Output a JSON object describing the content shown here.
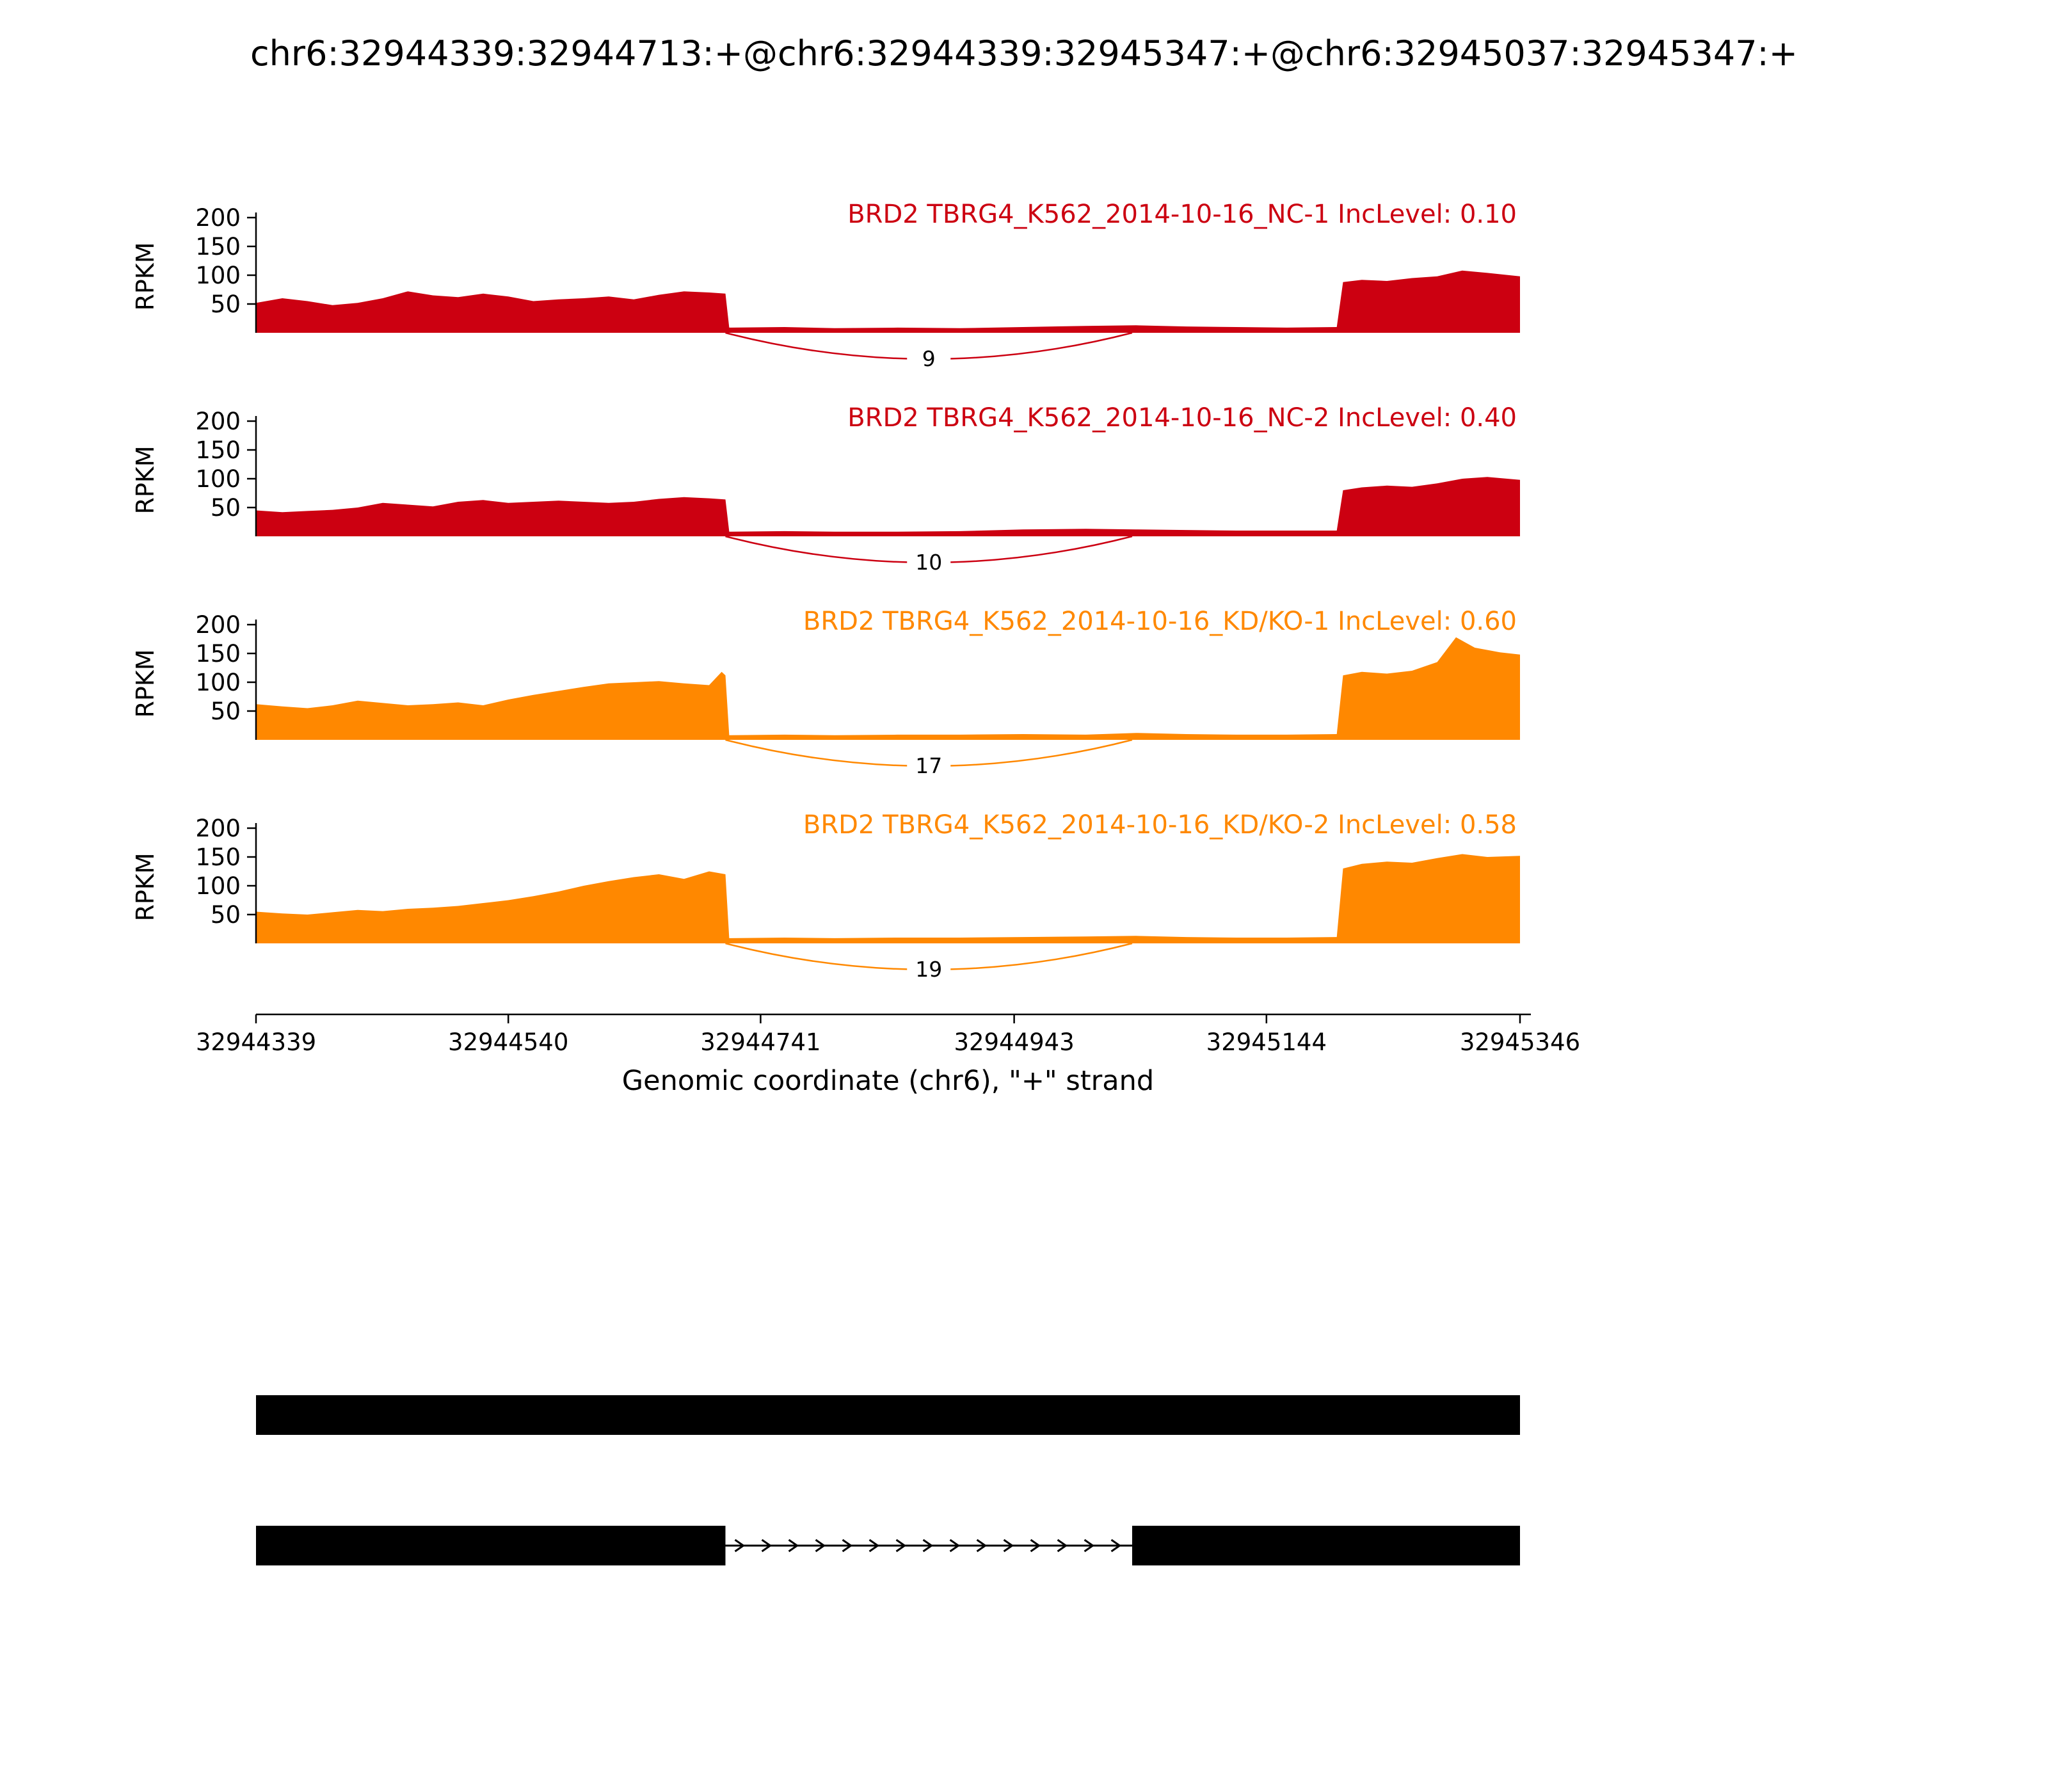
{
  "title": "chr6:32944339:32944713:+@chr6:32944339:32945347:+@chr6:32945037:32945347:+",
  "chart_data": {
    "type": "area",
    "subtype": "sashimi-plot",
    "title": "chr6:32944339:32944713:+@chr6:32944339:32945347:+@chr6:32945037:32945347:+",
    "xlabel": "Genomic coordinate (chr6), \"+\" strand",
    "ylabel": "RPKM",
    "xlim": [
      32944339,
      32945346
    ],
    "ylim": [
      0,
      230
    ],
    "x_ticks": [
      32944339,
      32944540,
      32944741,
      32944943,
      32945144,
      32945346
    ],
    "y_ticks": [
      50,
      100,
      150,
      200
    ],
    "colors": {
      "nc": "#CC0011",
      "kd": "#FF8800",
      "gene_model": "#000000"
    },
    "tracks": [
      {
        "sample": "BRD2 TBRG4_K562_2014-10-16_NC-1",
        "inc_level": 0.1,
        "label": "BRD2 TBRG4_K562_2014-10-16_NC-1 IncLevel: 0.10",
        "color": "#CC0011",
        "junction": {
          "from": 32944713,
          "to": 32945037,
          "reads": 9
        },
        "coverage": [
          [
            32944339,
            52
          ],
          [
            32944360,
            60
          ],
          [
            32944380,
            55
          ],
          [
            32944400,
            48
          ],
          [
            32944420,
            52
          ],
          [
            32944440,
            60
          ],
          [
            32944460,
            72
          ],
          [
            32944480,
            65
          ],
          [
            32944500,
            62
          ],
          [
            32944520,
            68
          ],
          [
            32944540,
            63
          ],
          [
            32944560,
            55
          ],
          [
            32944580,
            58
          ],
          [
            32944600,
            60
          ],
          [
            32944620,
            63
          ],
          [
            32944640,
            58
          ],
          [
            32944660,
            66
          ],
          [
            32944680,
            72
          ],
          [
            32944700,
            70
          ],
          [
            32944713,
            68
          ],
          [
            32944716,
            9
          ],
          [
            32944760,
            10
          ],
          [
            32944800,
            8
          ],
          [
            32944850,
            9
          ],
          [
            32944900,
            8
          ],
          [
            32944950,
            10
          ],
          [
            32945000,
            12
          ],
          [
            32945040,
            13
          ],
          [
            32945080,
            11
          ],
          [
            32945120,
            10
          ],
          [
            32945160,
            9
          ],
          [
            32945200,
            10
          ],
          [
            32945205,
            88
          ],
          [
            32945220,
            92
          ],
          [
            32945240,
            90
          ],
          [
            32945260,
            95
          ],
          [
            32945280,
            98
          ],
          [
            32945300,
            108
          ],
          [
            32945320,
            104
          ],
          [
            32945346,
            98
          ]
        ]
      },
      {
        "sample": "BRD2 TBRG4_K562_2014-10-16_NC-2",
        "inc_level": 0.4,
        "label": "BRD2 TBRG4_K562_2014-10-16_NC-2 IncLevel: 0.40",
        "color": "#CC0011",
        "junction": {
          "from": 32944713,
          "to": 32945037,
          "reads": 10
        },
        "coverage": [
          [
            32944339,
            45
          ],
          [
            32944360,
            42
          ],
          [
            32944380,
            44
          ],
          [
            32944400,
            46
          ],
          [
            32944420,
            50
          ],
          [
            32944440,
            58
          ],
          [
            32944460,
            55
          ],
          [
            32944480,
            52
          ],
          [
            32944500,
            60
          ],
          [
            32944520,
            63
          ],
          [
            32944540,
            58
          ],
          [
            32944560,
            60
          ],
          [
            32944580,
            62
          ],
          [
            32944600,
            60
          ],
          [
            32944620,
            58
          ],
          [
            32944640,
            60
          ],
          [
            32944660,
            65
          ],
          [
            32944680,
            68
          ],
          [
            32944700,
            66
          ],
          [
            32944713,
            64
          ],
          [
            32944716,
            8
          ],
          [
            32944760,
            9
          ],
          [
            32944800,
            8
          ],
          [
            32944850,
            8
          ],
          [
            32944900,
            9
          ],
          [
            32944950,
            12
          ],
          [
            32945000,
            13
          ],
          [
            32945040,
            12
          ],
          [
            32945080,
            11
          ],
          [
            32945120,
            10
          ],
          [
            32945160,
            10
          ],
          [
            32945200,
            10
          ],
          [
            32945205,
            80
          ],
          [
            32945220,
            85
          ],
          [
            32945240,
            88
          ],
          [
            32945260,
            86
          ],
          [
            32945280,
            92
          ],
          [
            32945300,
            100
          ],
          [
            32945320,
            103
          ],
          [
            32945346,
            98
          ]
        ]
      },
      {
        "sample": "BRD2 TBRG4_K562_2014-10-16_KD/KO-1",
        "inc_level": 0.6,
        "label": "BRD2 TBRG4_K562_2014-10-16_KD/KO-1 IncLevel: 0.60",
        "color": "#FF8800",
        "junction": {
          "from": 32944713,
          "to": 32945037,
          "reads": 17
        },
        "coverage": [
          [
            32944339,
            62
          ],
          [
            32944360,
            58
          ],
          [
            32944380,
            55
          ],
          [
            32944400,
            60
          ],
          [
            32944420,
            68
          ],
          [
            32944440,
            64
          ],
          [
            32944460,
            60
          ],
          [
            32944480,
            62
          ],
          [
            32944500,
            65
          ],
          [
            32944520,
            60
          ],
          [
            32944540,
            70
          ],
          [
            32944560,
            78
          ],
          [
            32944580,
            85
          ],
          [
            32944600,
            92
          ],
          [
            32944620,
            98
          ],
          [
            32944640,
            100
          ],
          [
            32944660,
            102
          ],
          [
            32944680,
            98
          ],
          [
            32944700,
            95
          ],
          [
            32944710,
            118
          ],
          [
            32944713,
            112
          ],
          [
            32944716,
            8
          ],
          [
            32944760,
            9
          ],
          [
            32944800,
            8
          ],
          [
            32944850,
            9
          ],
          [
            32944900,
            9
          ],
          [
            32944950,
            10
          ],
          [
            32945000,
            9
          ],
          [
            32945040,
            12
          ],
          [
            32945080,
            10
          ],
          [
            32945120,
            9
          ],
          [
            32945160,
            9
          ],
          [
            32945200,
            10
          ],
          [
            32945205,
            112
          ],
          [
            32945220,
            118
          ],
          [
            32945240,
            115
          ],
          [
            32945260,
            120
          ],
          [
            32945280,
            135
          ],
          [
            32945295,
            178
          ],
          [
            32945310,
            160
          ],
          [
            32945330,
            152
          ],
          [
            32945346,
            148
          ]
        ]
      },
      {
        "sample": "BRD2 TBRG4_K562_2014-10-16_KD/KO-2",
        "inc_level": 0.58,
        "label": "BRD2 TBRG4_K562_2014-10-16_KD/KO-2 IncLevel: 0.58",
        "color": "#FF8800",
        "junction": {
          "from": 32944713,
          "to": 32945037,
          "reads": 19
        },
        "coverage": [
          [
            32944339,
            55
          ],
          [
            32944360,
            52
          ],
          [
            32944380,
            50
          ],
          [
            32944400,
            54
          ],
          [
            32944420,
            58
          ],
          [
            32944440,
            56
          ],
          [
            32944460,
            60
          ],
          [
            32944480,
            62
          ],
          [
            32944500,
            65
          ],
          [
            32944520,
            70
          ],
          [
            32944540,
            75
          ],
          [
            32944560,
            82
          ],
          [
            32944580,
            90
          ],
          [
            32944600,
            100
          ],
          [
            32944620,
            108
          ],
          [
            32944640,
            115
          ],
          [
            32944660,
            120
          ],
          [
            32944680,
            112
          ],
          [
            32944700,
            125
          ],
          [
            32944713,
            120
          ],
          [
            32944716,
            9
          ],
          [
            32944760,
            10
          ],
          [
            32944800,
            9
          ],
          [
            32944850,
            10
          ],
          [
            32944900,
            10
          ],
          [
            32944950,
            11
          ],
          [
            32945000,
            12
          ],
          [
            32945040,
            13
          ],
          [
            32945080,
            11
          ],
          [
            32945120,
            10
          ],
          [
            32945160,
            10
          ],
          [
            32945200,
            11
          ],
          [
            32945205,
            130
          ],
          [
            32945220,
            138
          ],
          [
            32945240,
            142
          ],
          [
            32945260,
            140
          ],
          [
            32945280,
            148
          ],
          [
            32945300,
            155
          ],
          [
            32945320,
            150
          ],
          [
            32945346,
            152
          ]
        ]
      }
    ],
    "gene_model": {
      "color": "#000000",
      "strand": "+",
      "isoforms": [
        {
          "exons": [
            [
              32944339,
              32945346
            ]
          ],
          "introns": []
        },
        {
          "exons": [
            [
              32944339,
              32944713
            ],
            [
              32945037,
              32945346
            ]
          ],
          "introns": [
            [
              32944713,
              32945037
            ]
          ]
        }
      ]
    }
  }
}
